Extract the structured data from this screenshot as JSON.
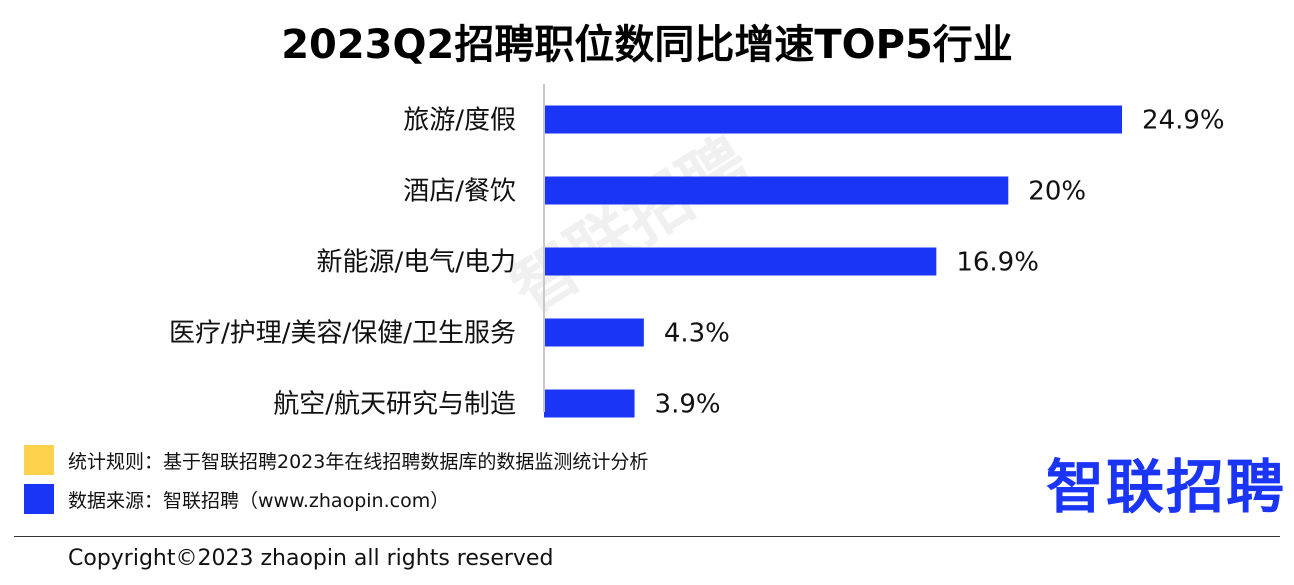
{
  "chart_data": {
    "type": "bar",
    "orientation": "horizontal",
    "title": "2023Q2招聘职位数同比增速TOP5行业",
    "categories": [
      "旅游/度假",
      "酒店/餐饮",
      "新能源/电气/电力",
      "医疗/护理/美容/保健/卫生服务",
      "航空/航天研究与制造"
    ],
    "values": [
      24.9,
      20,
      16.9,
      4.3,
      3.9
    ],
    "value_labels": [
      "24.9%",
      "20%",
      "16.9%",
      "4.3%",
      "3.9%"
    ],
    "unit": "%",
    "xlim": [
      0,
      28
    ],
    "grid": false,
    "bar_color": "#1a35f5",
    "axis_color": "#c8c8c8"
  },
  "watermark": "智联招聘",
  "legend": [
    {
      "text": "统计规则：基于智联招聘2023年在线招聘数据库的数据监测统计分析",
      "color": "#ffd24d"
    },
    {
      "text": "数据来源：智联招聘（www.zhaopin.com）",
      "color": "#1a35f5"
    }
  ],
  "logo": {
    "text": "智联招聘",
    "color": "#1a35f5"
  },
  "footer": {
    "copyright": "Copyright©2023 zhaopin all rights reserved"
  }
}
